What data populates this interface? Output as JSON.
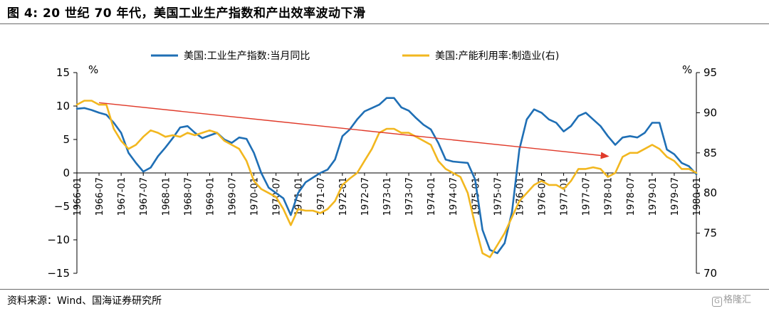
{
  "figure": {
    "title": "图 4:  20 世纪 70 年代，美国工业生产指数和产出效率波动下滑",
    "source": "资料来源：Wind、国海证券研究所",
    "watermark": "格隆汇"
  },
  "chart_data": {
    "type": "line",
    "title": "",
    "x_tick_labels": [
      "1966-01",
      "1966-07",
      "1967-01",
      "1967-07",
      "1968-01",
      "1968-07",
      "1969-01",
      "1969-07",
      "1970-01",
      "1970-07",
      "1971-01",
      "1971-07",
      "1972-01",
      "1972-07",
      "1973-01",
      "1973-07",
      "1974-01",
      "1974-07",
      "1975-01",
      "1975-07",
      "1976-01",
      "1976-07",
      "1977-01",
      "1977-07",
      "1978-01",
      "1978-07",
      "1979-01",
      "1979-07",
      "1980-01"
    ],
    "left_axis": {
      "unit": "%",
      "ylim": [
        -15,
        15
      ],
      "ticks": [
        -15,
        -10,
        -5,
        0,
        5,
        10,
        15
      ]
    },
    "right_axis": {
      "unit": "%",
      "ylim": [
        70,
        95
      ],
      "ticks": [
        70,
        75,
        80,
        85,
        90,
        95
      ]
    },
    "legend_position": "top-center",
    "grid": false,
    "series": [
      {
        "name": "美国:工业生产指数:当月同比",
        "axis": "left",
        "color": "#1f6fb5",
        "x": [
          "1966-01",
          "1966-03",
          "1966-05",
          "1966-07",
          "1966-09",
          "1966-11",
          "1967-01",
          "1967-03",
          "1967-05",
          "1967-07",
          "1967-09",
          "1967-11",
          "1968-01",
          "1968-03",
          "1968-05",
          "1968-07",
          "1968-09",
          "1968-11",
          "1969-01",
          "1969-03",
          "1969-05",
          "1969-07",
          "1969-09",
          "1969-11",
          "1970-01",
          "1970-03",
          "1970-05",
          "1970-07",
          "1970-09",
          "1970-11",
          "1971-01",
          "1971-03",
          "1971-05",
          "1971-07",
          "1971-09",
          "1971-11",
          "1972-01",
          "1972-03",
          "1972-05",
          "1972-07",
          "1972-09",
          "1972-11",
          "1973-01",
          "1973-03",
          "1973-05",
          "1973-07",
          "1973-09",
          "1973-11",
          "1974-01",
          "1974-03",
          "1974-05",
          "1974-07",
          "1974-09",
          "1974-11",
          "1975-01",
          "1975-03",
          "1975-05",
          "1975-07",
          "1975-09",
          "1975-11",
          "1976-01",
          "1976-03",
          "1976-05",
          "1976-07",
          "1976-09",
          "1976-11",
          "1977-01",
          "1977-03",
          "1977-05",
          "1977-07",
          "1977-09",
          "1977-11",
          "1978-01",
          "1978-03",
          "1978-05",
          "1978-07",
          "1978-09",
          "1978-11",
          "1979-01",
          "1979-03",
          "1979-05",
          "1979-07",
          "1979-09",
          "1979-11",
          "1980-01"
        ],
        "y": [
          9.6,
          9.7,
          9.4,
          9.0,
          8.7,
          7.5,
          6.0,
          3.0,
          1.5,
          0.2,
          0.8,
          2.5,
          3.8,
          5.2,
          6.8,
          7.0,
          6.0,
          5.2,
          5.6,
          6.0,
          5.0,
          4.5,
          5.3,
          5.1,
          3.0,
          0.0,
          -2.2,
          -3.0,
          -3.8,
          -6.3,
          -3.0,
          -1.4,
          -0.7,
          0.0,
          0.5,
          2.0,
          5.5,
          6.5,
          8.0,
          9.2,
          9.7,
          10.2,
          11.2,
          11.2,
          9.8,
          9.3,
          8.2,
          7.2,
          6.5,
          4.5,
          2.0,
          1.7,
          1.6,
          1.5,
          -1.0,
          -8.5,
          -11.5,
          -12.0,
          -10.5,
          -5.8,
          3.5,
          8.0,
          9.5,
          9.0,
          8.0,
          7.5,
          6.2,
          7.0,
          8.5,
          9.0,
          8.0,
          7.0,
          5.5,
          4.2,
          5.3,
          5.5,
          5.3,
          6.0,
          7.5,
          7.5,
          3.5,
          2.8,
          1.5,
          1.0,
          -0.2
        ]
      },
      {
        "name": "美国:产能利用率:制造业(右)",
        "axis": "right",
        "color": "#f2b71f",
        "x": [
          "1966-01",
          "1966-03",
          "1966-05",
          "1966-07",
          "1966-09",
          "1966-11",
          "1967-01",
          "1967-03",
          "1967-05",
          "1967-07",
          "1967-09",
          "1967-11",
          "1968-01",
          "1968-03",
          "1968-05",
          "1968-07",
          "1968-09",
          "1968-11",
          "1969-01",
          "1969-03",
          "1969-05",
          "1969-07",
          "1969-09",
          "1969-11",
          "1970-01",
          "1970-03",
          "1970-05",
          "1970-07",
          "1970-09",
          "1970-11",
          "1971-01",
          "1971-03",
          "1971-05",
          "1971-07",
          "1971-09",
          "1971-11",
          "1972-01",
          "1972-03",
          "1972-05",
          "1972-07",
          "1972-09",
          "1972-11",
          "1973-01",
          "1973-03",
          "1973-05",
          "1973-07",
          "1973-09",
          "1973-11",
          "1974-01",
          "1974-03",
          "1974-05",
          "1974-07",
          "1974-09",
          "1974-11",
          "1975-01",
          "1975-03",
          "1975-05",
          "1975-07",
          "1975-09",
          "1975-11",
          "1976-01",
          "1976-03",
          "1976-05",
          "1976-07",
          "1976-09",
          "1976-11",
          "1977-01",
          "1977-03",
          "1977-05",
          "1977-07",
          "1977-09",
          "1977-11",
          "1978-01",
          "1978-03",
          "1978-05",
          "1978-07",
          "1978-09",
          "1978-11",
          "1979-01",
          "1979-03",
          "1979-05",
          "1979-07",
          "1979-09",
          "1979-11",
          "1980-01"
        ],
        "y": [
          91.0,
          91.5,
          91.5,
          91.0,
          91.0,
          88.0,
          86.5,
          85.5,
          86.0,
          87.0,
          87.8,
          87.5,
          87.0,
          87.2,
          87.0,
          87.5,
          87.2,
          87.5,
          87.8,
          87.5,
          86.5,
          86.0,
          85.5,
          84.0,
          81.5,
          80.5,
          80.0,
          79.5,
          78.0,
          76.0,
          78.0,
          77.8,
          77.8,
          77.5,
          78.0,
          79.0,
          81.0,
          81.8,
          82.5,
          84.0,
          85.5,
          87.5,
          88.0,
          88.0,
          87.5,
          87.5,
          87.0,
          86.5,
          86.0,
          84.0,
          83.0,
          82.5,
          82.0,
          80.0,
          76.0,
          72.5,
          72.0,
          73.5,
          75.0,
          77.0,
          79.0,
          80.0,
          81.0,
          81.5,
          81.0,
          81.0,
          80.5,
          81.5,
          83.0,
          83.0,
          83.2,
          83.0,
          82.0,
          82.5,
          84.5,
          85.0,
          85.0,
          85.5,
          86.0,
          85.5,
          84.5,
          84.0,
          83.0,
          83.0,
          82.5
        ]
      }
    ],
    "annotation": {
      "type": "arrow",
      "color": "#e03a2a",
      "from": [
        "1966-07",
        10.5
      ],
      "to": [
        "1978-01",
        2.5
      ]
    }
  }
}
